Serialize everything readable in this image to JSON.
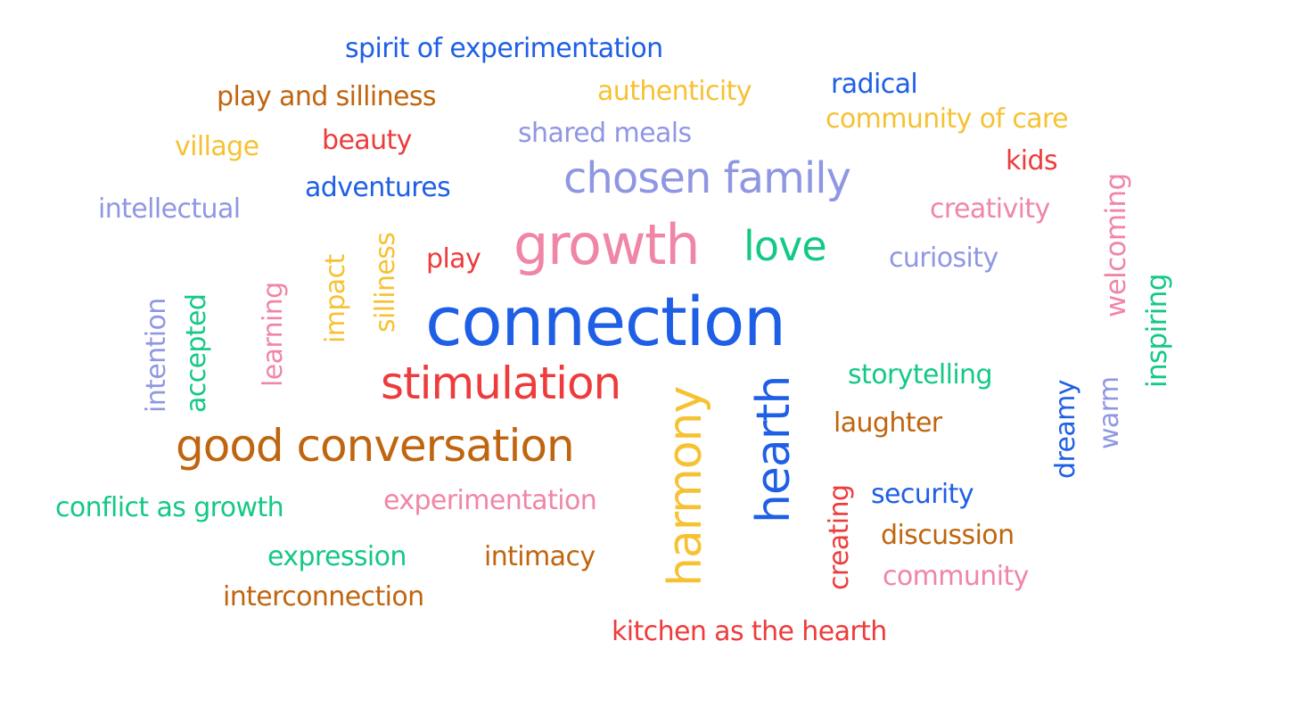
{
  "palette": {
    "blue": "#1E5FE6",
    "orange": "#C0650F",
    "yellow": "#F6C233",
    "purple": "#8F97E3",
    "red": "#EE3B3B",
    "pink": "#F086A6",
    "green": "#14C985"
  },
  "words": [
    {
      "name": "word-spirit-of-experimentation",
      "text": "spirit of experimentation",
      "color": "blue"
    },
    {
      "name": "word-play-and-silliness",
      "text": "play and silliness",
      "color": "orange"
    },
    {
      "name": "word-authenticity",
      "text": "authenticity",
      "color": "yellow"
    },
    {
      "name": "word-radical",
      "text": "radical",
      "color": "blue"
    },
    {
      "name": "word-community-of-care",
      "text": "community of care",
      "color": "yellow"
    },
    {
      "name": "word-village",
      "text": "village",
      "color": "yellow"
    },
    {
      "name": "word-beauty",
      "text": "beauty",
      "color": "red"
    },
    {
      "name": "word-shared-meals",
      "text": "shared meals",
      "color": "purple"
    },
    {
      "name": "word-kids",
      "text": "kids",
      "color": "red"
    },
    {
      "name": "word-chosen-family",
      "text": "chosen family",
      "color": "purple"
    },
    {
      "name": "word-adventures",
      "text": "adventures",
      "color": "blue"
    },
    {
      "name": "word-intellectual",
      "text": "intellectual",
      "color": "purple"
    },
    {
      "name": "word-creativity",
      "text": "creativity",
      "color": "pink"
    },
    {
      "name": "word-welcoming",
      "text": "welcoming",
      "color": "pink"
    },
    {
      "name": "word-growth",
      "text": "growth",
      "color": "pink"
    },
    {
      "name": "word-love",
      "text": "love",
      "color": "green"
    },
    {
      "name": "word-play",
      "text": "play",
      "color": "red"
    },
    {
      "name": "word-curiosity",
      "text": "curiosity",
      "color": "purple"
    },
    {
      "name": "word-silliness",
      "text": "silliness",
      "color": "yellow"
    },
    {
      "name": "word-impact",
      "text": "impact",
      "color": "yellow"
    },
    {
      "name": "word-learning",
      "text": "learning",
      "color": "pink"
    },
    {
      "name": "word-accepted",
      "text": "accepted",
      "color": "green"
    },
    {
      "name": "word-intention",
      "text": "intention",
      "color": "purple"
    },
    {
      "name": "word-inspiring",
      "text": "inspiring",
      "color": "green"
    },
    {
      "name": "word-connection",
      "text": "connection",
      "color": "blue"
    },
    {
      "name": "word-stimulation",
      "text": "stimulation",
      "color": "red"
    },
    {
      "name": "word-harmony",
      "text": "harmony",
      "color": "yellow"
    },
    {
      "name": "word-hearth",
      "text": "hearth",
      "color": "blue"
    },
    {
      "name": "word-storytelling",
      "text": "storytelling",
      "color": "green"
    },
    {
      "name": "word-dreamy",
      "text": "dreamy",
      "color": "blue"
    },
    {
      "name": "word-warm",
      "text": "warm",
      "color": "purple"
    },
    {
      "name": "word-laughter",
      "text": "laughter",
      "color": "orange"
    },
    {
      "name": "word-good-conversation",
      "text": "good conversation",
      "color": "orange"
    },
    {
      "name": "word-creating",
      "text": "creating",
      "color": "red"
    },
    {
      "name": "word-security",
      "text": "security",
      "color": "blue"
    },
    {
      "name": "word-experimentation",
      "text": "experimentation",
      "color": "pink"
    },
    {
      "name": "word-conflict-as-growth",
      "text": "conflict as growth",
      "color": "green"
    },
    {
      "name": "word-discussion",
      "text": "discussion",
      "color": "orange"
    },
    {
      "name": "word-expression",
      "text": "expression",
      "color": "green"
    },
    {
      "name": "word-intimacy",
      "text": "intimacy",
      "color": "orange"
    },
    {
      "name": "word-community",
      "text": "community",
      "color": "pink"
    },
    {
      "name": "word-interconnection",
      "text": "interconnection",
      "color": "orange"
    },
    {
      "name": "word-kitchen-as-the-hearth",
      "text": "kitchen as the hearth",
      "color": "red"
    }
  ]
}
